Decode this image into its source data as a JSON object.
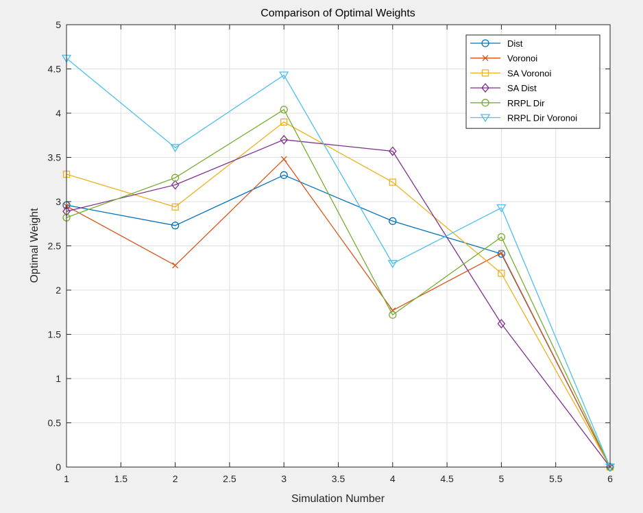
{
  "chart_data": {
    "type": "line",
    "title": "Comparison of Optimal Weights",
    "xlabel": "Simulation Number",
    "ylabel": "Optimal Weight",
    "xlim": [
      1,
      6
    ],
    "ylim": [
      0,
      5
    ],
    "xticks": [
      "1",
      "1.5",
      "2",
      "2.5",
      "3",
      "3.5",
      "4",
      "4.5",
      "5",
      "5.5",
      "6"
    ],
    "yticks": [
      "0",
      "0.5",
      "1",
      "1.5",
      "2",
      "2.5",
      "3",
      "3.5",
      "4",
      "4.5",
      "5"
    ],
    "grid": true,
    "legend_position": "top-right",
    "x": [
      1,
      2,
      3,
      4,
      5,
      6
    ],
    "series": [
      {
        "name": "Dist",
        "marker": "circle",
        "color": "#0072bd",
        "values": [
          2.96,
          2.73,
          3.3,
          2.78,
          2.41,
          0.0
        ]
      },
      {
        "name": "Voronoi",
        "marker": "x",
        "color": "#d95319",
        "values": [
          2.95,
          2.28,
          3.48,
          1.77,
          2.42,
          0.0
        ]
      },
      {
        "name": "SA Voronoi",
        "marker": "square",
        "color": "#edb120",
        "values": [
          3.31,
          2.94,
          3.9,
          3.22,
          2.19,
          0.0
        ]
      },
      {
        "name": "SA Dist",
        "marker": "diamond",
        "color": "#7e2f8e",
        "values": [
          2.89,
          3.19,
          3.7,
          3.57,
          1.62,
          0.0
        ]
      },
      {
        "name": "RRPL Dir",
        "marker": "circle",
        "color": "#77ac30",
        "values": [
          2.82,
          3.27,
          4.04,
          1.72,
          2.6,
          0.0
        ]
      },
      {
        "name": "RRPL Dir Voronoi",
        "marker": "triangle-down",
        "color": "#4dbeee",
        "values": [
          4.62,
          3.61,
          4.43,
          2.3,
          2.93,
          0.0
        ]
      }
    ]
  }
}
